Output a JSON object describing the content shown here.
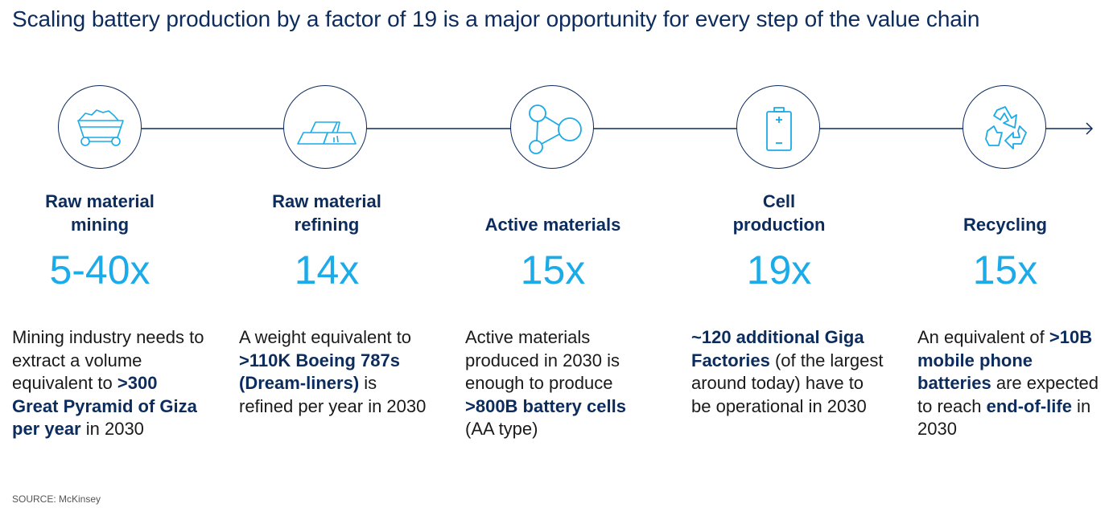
{
  "title": "Scaling battery production by a factor of 19 is a major opportunity for every step of the value chain",
  "source": "SOURCE: McKinsey",
  "colors": {
    "navy": "#0c2c5e",
    "accent": "#1aabe8",
    "text": "#1a1a1a"
  },
  "steps": [
    {
      "icon": "mining-cart-icon",
      "heading_lines": [
        "Raw material",
        "mining"
      ],
      "factor": "5-40x",
      "desc": [
        {
          "t": "Mining industry needs to extract a volume equivalent to "
        },
        {
          "t": ">300 Great Pyramid of Giza per year",
          "b": true
        },
        {
          "t": " in 2030"
        }
      ]
    },
    {
      "icon": "metal-ingots-icon",
      "heading_lines": [
        "Raw material",
        "refining"
      ],
      "factor": "14x",
      "desc": [
        {
          "t": "A weight equivalent to "
        },
        {
          "t": ">110K Boeing 787s (Dream-liners)",
          "b": true
        },
        {
          "t": " is refined per year in 2030"
        }
      ]
    },
    {
      "icon": "molecule-icon",
      "heading_lines": [
        "Active materials"
      ],
      "factor": "15x",
      "desc": [
        {
          "t": "Active materials produced in 2030 is enough to produce "
        },
        {
          "t": ">800B battery cells",
          "b": true
        },
        {
          "t": " (AA type)"
        }
      ]
    },
    {
      "icon": "battery-icon",
      "heading_lines": [
        "Cell",
        "production"
      ],
      "factor": "19x",
      "desc": [
        {
          "t": "~120 additional Giga Factories",
          "b": true
        },
        {
          "t": " (of the largest around today) have to be operational in 2030"
        }
      ]
    },
    {
      "icon": "recycling-icon",
      "heading_lines": [
        "Recycling"
      ],
      "factor": "15x",
      "desc": [
        {
          "t": "An equivalent of "
        },
        {
          "t": ">10B mobile phone batteries",
          "b": true
        },
        {
          "t": " are expected to reach "
        },
        {
          "t": "end-of-life",
          "b": true
        },
        {
          "t": " in 2030"
        }
      ]
    }
  ]
}
